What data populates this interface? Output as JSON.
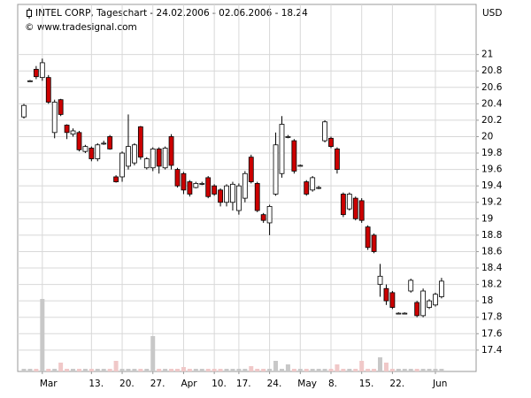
{
  "chart_data": {
    "type": "candlestick",
    "title": "INTEL CORP, Tageschart - 24.02.2006 - 02.06.2006 - 18.24",
    "subtitle": "© www.tradesignal.com",
    "y_axis_label": "USD",
    "categories": [
      null,
      null,
      null,
      "Mar",
      null,
      null,
      null,
      null,
      null,
      null,
      null,
      "13.",
      null,
      null,
      null,
      null,
      "20.",
      null,
      null,
      null,
      null,
      "27.",
      null,
      null,
      null,
      null,
      "Apr",
      null,
      null,
      null,
      null,
      "10.",
      null,
      null,
      null,
      "17.",
      null,
      null,
      null,
      null,
      "24.",
      null,
      null,
      null,
      null,
      "May",
      null,
      null,
      null,
      null,
      "8.",
      null,
      null,
      null,
      null,
      "15.",
      null,
      null,
      null,
      null,
      "22.",
      null,
      null,
      null,
      null,
      null,
      null,
      "Jun",
      null
    ],
    "open": [
      20.24,
      20.68,
      20.82,
      20.72,
      20.72,
      20.05,
      20.45,
      20.14,
      20.03,
      20.05,
      19.82,
      19.86,
      19.73,
      19.92,
      20.0,
      19.51,
      19.51,
      19.64,
      19.68,
      20.12,
      19.62,
      19.62,
      19.85,
      19.62,
      20.0,
      19.6,
      19.55,
      19.45,
      19.38,
      19.43,
      19.5,
      19.4,
      19.35,
      19.2,
      19.2,
      19.1,
      19.25,
      19.75,
      19.43,
      19.05,
      18.95,
      19.3,
      19.55,
      20.0,
      19.95,
      19.65,
      19.45,
      19.35,
      19.38,
      19.95,
      19.98,
      19.85,
      19.3,
      19.12,
      19.25,
      19.22,
      18.9,
      18.8,
      18.2,
      18.15,
      18.1,
      17.85,
      17.85,
      18.12,
      17.98,
      17.82,
      17.92,
      17.95,
      18.05
    ],
    "high": [
      20.4,
      20.69,
      20.86,
      20.95,
      20.75,
      20.45,
      20.46,
      20.15,
      20.1,
      20.07,
      19.9,
      19.88,
      19.92,
      19.95,
      20.02,
      19.53,
      19.82,
      20.27,
      19.92,
      20.13,
      19.75,
      19.87,
      19.87,
      19.88,
      20.03,
      19.62,
      19.57,
      19.47,
      19.45,
      19.45,
      19.52,
      19.42,
      19.37,
      19.42,
      19.45,
      19.43,
      19.58,
      19.78,
      19.45,
      19.07,
      19.17,
      20.05,
      20.25,
      20.02,
      19.97,
      19.66,
      19.47,
      19.52,
      19.4,
      20.2,
      20.0,
      19.87,
      19.32,
      19.32,
      19.27,
      19.25,
      18.92,
      18.82,
      18.45,
      18.2,
      18.12,
      17.86,
      17.86,
      18.27,
      18.0,
      18.15,
      18.02,
      18.1,
      18.28
    ],
    "low": [
      20.22,
      20.67,
      20.7,
      20.68,
      20.4,
      19.98,
      20.25,
      19.97,
      20.0,
      19.82,
      19.8,
      19.7,
      19.7,
      19.9,
      19.84,
      19.44,
      19.45,
      19.6,
      19.65,
      19.72,
      19.6,
      19.58,
      19.55,
      19.6,
      19.6,
      19.38,
      19.3,
      19.27,
      19.37,
      19.41,
      19.25,
      19.28,
      19.15,
      19.15,
      19.1,
      19.05,
      19.2,
      19.43,
      19.08,
      18.95,
      18.8,
      19.28,
      19.5,
      19.98,
      19.55,
      19.64,
      19.28,
      19.33,
      19.36,
      19.93,
      19.86,
      19.55,
      19.02,
      19.1,
      18.98,
      18.95,
      18.62,
      18.58,
      18.05,
      17.95,
      17.9,
      17.84,
      17.84,
      18.1,
      17.8,
      17.8,
      17.9,
      17.93,
      18.03
    ],
    "close": [
      20.38,
      20.68,
      20.73,
      20.9,
      20.42,
      20.42,
      20.27,
      20.05,
      20.07,
      19.84,
      19.88,
      19.73,
      19.9,
      19.92,
      19.85,
      19.45,
      19.8,
      19.88,
      19.9,
      19.75,
      19.73,
      19.85,
      19.64,
      19.86,
      19.65,
      19.4,
      19.35,
      19.3,
      19.43,
      19.43,
      19.27,
      19.3,
      19.2,
      19.4,
      19.42,
      19.4,
      19.55,
      19.45,
      19.1,
      18.98,
      19.15,
      19.9,
      20.15,
      20.0,
      19.58,
      19.65,
      19.3,
      19.5,
      19.38,
      20.18,
      19.88,
      19.6,
      19.05,
      19.3,
      19.0,
      18.98,
      18.65,
      18.6,
      18.3,
      18.0,
      17.92,
      17.85,
      17.85,
      18.25,
      17.82,
      18.12,
      18.0,
      18.08,
      18.24
    ],
    "volume": [
      3,
      3,
      3,
      82,
      3,
      3,
      10,
      3,
      3,
      3,
      3,
      3,
      3,
      3,
      3,
      12,
      3,
      3,
      3,
      3,
      3,
      40,
      3,
      3,
      3,
      3,
      5,
      3,
      3,
      3,
      3,
      3,
      3,
      3,
      3,
      3,
      3,
      6,
      3,
      3,
      3,
      12,
      3,
      8,
      3,
      3,
      3,
      3,
      3,
      3,
      3,
      8,
      3,
      3,
      3,
      12,
      3,
      3,
      16,
      10,
      3,
      3,
      3,
      3,
      3,
      3,
      3,
      3,
      3
    ],
    "up_color": "#ffffff",
    "down_color": "#cc0000",
    "volume_up_color": "#c8c8c8",
    "volume_down_color": "#f0c8c8",
    "ylim": [
      17.14,
      21.61
    ],
    "yticks": [
      17.4,
      17.6,
      17.8,
      18,
      18.2,
      18.4,
      18.6,
      18.8,
      19,
      19.2,
      19.4,
      19.6,
      19.8,
      20,
      20.2,
      20.4,
      20.6,
      20.8,
      21
    ],
    "grid": true
  }
}
